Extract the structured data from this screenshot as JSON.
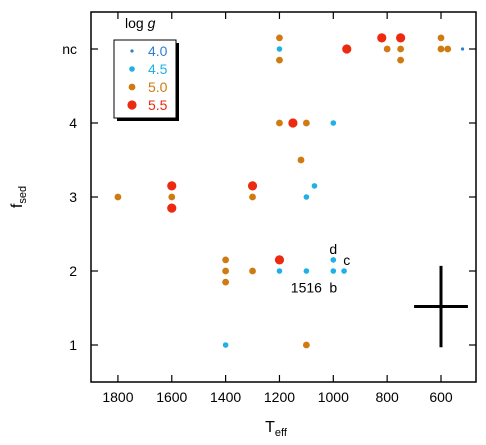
{
  "chart_data": {
    "type": "scatter",
    "xlabel": "T",
    "xlabel_sub": "eff",
    "ylabel": "f",
    "ylabel_sub": "sed",
    "xlim": [
      1900,
      470
    ],
    "ylim": [
      0.5,
      5.5
    ],
    "x_reversed": true,
    "x_ticks": [
      1800,
      1600,
      1400,
      1200,
      1000,
      800,
      600
    ],
    "y_ticks": [
      {
        "value": 1,
        "label": "1"
      },
      {
        "value": 2,
        "label": "2"
      },
      {
        "value": 3,
        "label": "3"
      },
      {
        "value": 4,
        "label": "4"
      },
      {
        "value": 5,
        "label": "nc"
      }
    ],
    "legend": {
      "title_prefix": "log ",
      "title_var": "g",
      "placement": "top-left"
    },
    "series": [
      {
        "name": "4.0",
        "color": "#2f7fd0",
        "marker_size": "tiny",
        "points": [
          [
            520,
            5.0
          ]
        ]
      },
      {
        "name": "4.5",
        "color": "#1fb0e6",
        "marker_size": "small",
        "points": [
          [
            1200,
            5.15
          ],
          [
            1200,
            5.0
          ],
          [
            1000,
            4.0
          ],
          [
            1070,
            3.15
          ],
          [
            1100,
            3.0
          ],
          [
            1400,
            2.0
          ],
          [
            1200,
            2.0
          ],
          [
            1100,
            2.0
          ],
          [
            1000,
            2.15
          ],
          [
            1000,
            2.0
          ],
          [
            960,
            2.0
          ],
          [
            1400,
            1.0
          ]
        ]
      },
      {
        "name": "5.0",
        "color": "#d07a12",
        "marker_size": "medium",
        "points": [
          [
            1200,
            5.15
          ],
          [
            1200,
            4.85
          ],
          [
            800,
            5.0
          ],
          [
            750,
            5.0
          ],
          [
            750,
            4.85
          ],
          [
            600,
            5.15
          ],
          [
            600,
            5.0
          ],
          [
            575,
            5.0
          ],
          [
            1200,
            4.0
          ],
          [
            1100,
            4.0
          ],
          [
            1120,
            3.5
          ],
          [
            1800,
            3.0
          ],
          [
            1600,
            3.0
          ],
          [
            1300,
            3.0
          ],
          [
            1400,
            2.15
          ],
          [
            1400,
            2.0
          ],
          [
            1400,
            1.85
          ],
          [
            1300,
            2.0
          ],
          [
            1100,
            1.0
          ]
        ]
      },
      {
        "name": "5.5",
        "color": "#ec2a10",
        "marker_size": "large",
        "points": [
          [
            950,
            5.0
          ],
          [
            820,
            5.15
          ],
          [
            750,
            5.15
          ],
          [
            1150,
            4.0
          ],
          [
            1600,
            3.15
          ],
          [
            1600,
            2.85
          ],
          [
            1300,
            3.15
          ],
          [
            1200,
            2.15
          ]
        ]
      }
    ],
    "annotations": [
      {
        "text": "1516",
        "x": 1100,
        "y": 1.78
      },
      {
        "text": "d",
        "x": 1000,
        "y": 2.3
      },
      {
        "text": "c",
        "x": 950,
        "y": 2.15
      },
      {
        "text": "b",
        "x": 1000,
        "y": 1.78
      }
    ],
    "error_bar": {
      "x": 600,
      "y": 1.52,
      "xerr": 100,
      "yerr": 0.55
    }
  }
}
